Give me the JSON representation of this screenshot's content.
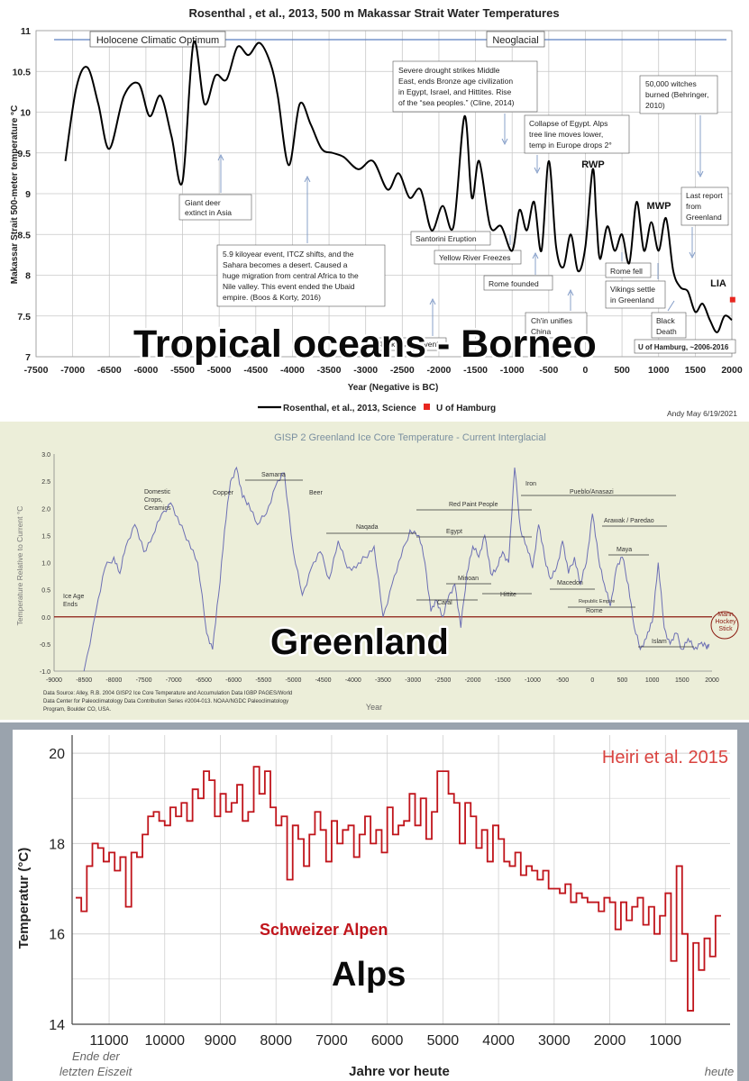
{
  "borneo": {
    "title": "Rosenthal , et al., 2013, 500 m Makassar Strait Water Temperatures",
    "ylabel": "Makassar Strait 500-meter temperature °C",
    "xlabel": "Year (Negative is BC)",
    "xticks": [
      "-7500",
      "-7000",
      "-6500",
      "-6000",
      "-5500",
      "-5000",
      "-4500",
      "-4000",
      "-3500",
      "-3000",
      "-2500",
      "-2000",
      "-1500",
      "-1000",
      "-500",
      "0",
      "500",
      "1000",
      "1500",
      "2000"
    ],
    "yticks": [
      "7",
      "7.5",
      "8",
      "8.5",
      "9",
      "9.5",
      "10",
      "10.5",
      "11"
    ],
    "period_holocene": "Holocene Climatic Optimum",
    "period_neoglacial": "Neoglacial",
    "ann_deer": [
      "Giant deer",
      "extinct in Asia"
    ],
    "ann_59": [
      "5.9 kiloyear event, ITCZ shifts, and the",
      "Sahara becomes a desert.  Caused a",
      "huge migration from central Africa to the",
      "Nile valley.  This event ended the Ubaid",
      "empire. (Boos & Korty, 2016)"
    ],
    "ann_42": "4.2 kiloyear event",
    "ann_drought": [
      "Severe drought strikes Middle",
      "East, ends Bronze age civilization",
      "in Egypt, Israel, and Hittites. Rise",
      "of the “sea peoples.” (Cline, 2014)"
    ],
    "ann_santorini": "Santorini Eruption",
    "ann_yellow": "Yellow River Freezes",
    "ann_rome_founded": "Rome founded",
    "ann_egypt": [
      "Collapse of Egypt. Alps",
      "tree line moves lower,",
      "temp in Europe drops 2°"
    ],
    "ann_chin": [
      "Ch'in unifies",
      "China"
    ],
    "ann_rwp": "RWP",
    "ann_mwp": "MWP",
    "ann_lia": "LIA",
    "ann_rome_fell": "Rome fell",
    "ann_vikings": [
      "Vikings settle",
      "in Greenland"
    ],
    "ann_black": [
      "Black",
      "Death"
    ],
    "ann_witches": [
      "50,000 witches",
      "burned (Behringer,",
      "2010)"
    ],
    "ann_last": [
      "Last report",
      "from",
      "Greenland"
    ],
    "ann_hamburg": "U of Hamburg, ~2006-2016",
    "legend_rosenthal": "Rosenthal, et al., 2013, Science",
    "legend_hamburg": "U of Hamburg",
    "credit": "Andy May   6/19/2021",
    "overlay": "Tropical oceans - Borneo",
    "colors": {
      "series": "#000000",
      "hamburg": "#e8261f",
      "annotation": "#7b96c4"
    }
  },
  "greenland": {
    "title": "GISP 2 Greenland Ice Core Temperature - Current Interglacial",
    "ylabel": "Temperature Relative to Current °C",
    "xlabel": "Year",
    "xticks": [
      "-9000",
      "-8500",
      "-8000",
      "-7500",
      "-7000",
      "-6500",
      "-6000",
      "-5500",
      "-5000",
      "-4500",
      "-4000",
      "-3500",
      "-3000",
      "-2500",
      "-2000",
      "-1500",
      "-1000",
      "-500",
      "0",
      "500",
      "1000",
      "1500",
      "2000"
    ],
    "yticks": [
      "-1.0",
      "-0.5",
      "0.0",
      "0.5",
      "1.0",
      "1.5",
      "2.0",
      "2.5",
      "3.0"
    ],
    "labels": {
      "ice_age": [
        "Ice Age",
        "Ends"
      ],
      "domestic": [
        "Domestic",
        "Crops,",
        "Ceramics"
      ],
      "copper": "Copper",
      "samarra": "Samarra",
      "beer": "Beer",
      "naqada": "Naqada",
      "red_paint": "Red Paint People",
      "egypt": "Egypt",
      "iron": "Iron",
      "pueblo": "Pueblo/Anasazi",
      "arawak": "Arawak / Paredao",
      "minoan": "Minoan",
      "caral": "Caral",
      "hittite": "Hittite",
      "macedon": "Macedon",
      "republic": "Republic   Empire",
      "rome": "Rome",
      "maya": "Maya",
      "islam": "Islam",
      "mann": [
        "Mann",
        "Hockey",
        "Stick"
      ]
    },
    "source": [
      "Data Source: Alley, R.B.  2004 GISP2 Ice Core Temperature and Accumulation Data  IGBP PAGES/World",
      "Data Center for Paleoclimatology Data Contribution Series #2004-013. NOAA/NGDC Paleoclimatology",
      "Program, Boulder CO, USA."
    ],
    "overlay": "Greenland",
    "colors": {
      "series": "#6c6fb4",
      "zero": "#8b1a10"
    }
  },
  "alps": {
    "citation": "Heiri et al. 2015",
    "ylabel": "Temperatur (°C)",
    "xlabel": "Jahre vor heute",
    "xticks": [
      "11000",
      "10000",
      "9000",
      "8000",
      "7000",
      "6000",
      "5000",
      "4000",
      "3000",
      "2000",
      "1000"
    ],
    "yticks": [
      "20",
      "18",
      "16",
      "14"
    ],
    "series_label": "Schweizer Alpen",
    "left_note": [
      "Ende der",
      "letzten Eiszeit"
    ],
    "right_note": "heute",
    "overlay": "Alps",
    "colors": {
      "series": "#c0141b",
      "citation": "#d9433f"
    }
  },
  "chart_data": [
    {
      "type": "line",
      "title": "Rosenthal , et al., 2013, 500 m Makassar Strait Water Temperatures",
      "xlabel": "Year (Negative is BC)",
      "ylabel": "Makassar Strait 500-meter temperature °C",
      "xlim": [
        -7500,
        2000
      ],
      "ylim": [
        7,
        11
      ],
      "grid": true,
      "legend": "bottom",
      "series": [
        {
          "name": "Rosenthal, et al., 2013, Science",
          "x": [
            -7100,
            -6950,
            -6800,
            -6650,
            -6500,
            -6300,
            -6100,
            -5950,
            -5800,
            -5650,
            -5500,
            -5350,
            -5200,
            -5050,
            -4900,
            -4750,
            -4600,
            -4450,
            -4300,
            -4200,
            -4050,
            -3900,
            -3750,
            -3600,
            -3450,
            -3300,
            -3100,
            -2900,
            -2700,
            -2550,
            -2400,
            -2250,
            -2100,
            -1950,
            -1800,
            -1650,
            -1550,
            -1450,
            -1300,
            -1150,
            -1000,
            -900,
            -800,
            -700,
            -600,
            -500,
            -400,
            -300,
            -200,
            -100,
            0,
            100,
            150,
            200,
            300,
            400,
            500,
            600,
            700,
            800,
            900,
            1000,
            1100,
            1200,
            1300,
            1400,
            1500,
            1600,
            1700,
            1800,
            1900,
            2000
          ],
          "values": [
            9.4,
            10.3,
            10.55,
            10.1,
            9.55,
            10.2,
            10.35,
            9.95,
            10.2,
            9.7,
            9.15,
            10.85,
            10.1,
            10.45,
            10.4,
            10.8,
            10.7,
            10.85,
            10.6,
            10.2,
            9.35,
            10.1,
            9.85,
            9.55,
            9.5,
            9.45,
            9.3,
            9.4,
            9.05,
            9.25,
            8.95,
            9.05,
            8.55,
            8.85,
            8.6,
            9.95,
            8.95,
            9.4,
            8.6,
            8.6,
            8.3,
            8.8,
            8.55,
            8.9,
            8.3,
            9.4,
            8.35,
            8.1,
            8.5,
            8.05,
            8.35,
            9.3,
            8.7,
            8.2,
            8.6,
            8.3,
            8.5,
            8.15,
            8.9,
            8.3,
            8.65,
            8.3,
            8.7,
            8.05,
            7.85,
            7.8,
            7.55,
            7.65,
            7.45,
            7.3,
            7.5,
            7.45
          ]
        },
        {
          "name": "U of Hamburg",
          "x": [
            2010
          ],
          "values": [
            7.7
          ]
        }
      ]
    },
    {
      "type": "line",
      "title": "GISP 2 Greenland Ice Core Temperature - Current Interglacial",
      "xlabel": "Year",
      "ylabel": "Temperature Relative to Current °C",
      "xlim": [
        -9000,
        2000
      ],
      "ylim": [
        -1.0,
        3.0
      ],
      "grid": false,
      "series": [
        {
          "x": [
            -8500,
            -8300,
            -8150,
            -8000,
            -7900,
            -7800,
            -7650,
            -7500,
            -7350,
            -7200,
            -7050,
            -6900,
            -6750,
            -6600,
            -6450,
            -6350,
            -6250,
            -6150,
            -6050,
            -5950,
            -5850,
            -5750,
            -5600,
            -5450,
            -5300,
            -5150,
            -5000,
            -4850,
            -4700,
            -4550,
            -4400,
            -4250,
            -4100,
            -3950,
            -3800,
            -3650,
            -3500,
            -3350,
            -3200,
            -3050,
            -2900,
            -2800,
            -2700,
            -2600,
            -2500,
            -2400,
            -2300,
            -2200,
            -2100,
            -2000,
            -1900,
            -1800,
            -1700,
            -1600,
            -1500,
            -1400,
            -1300,
            -1200,
            -1100,
            -1000,
            -900,
            -800,
            -700,
            -600,
            -500,
            -400,
            -300,
            -200,
            -100,
            0,
            100,
            200,
            300,
            400,
            500,
            600,
            700,
            800,
            900,
            1000,
            1100,
            1200,
            1300,
            1400,
            1500,
            1600,
            1700,
            1800,
            1900,
            1950
          ],
          "values": [
            -1.0,
            0.1,
            0.9,
            1.1,
            0.8,
            1.3,
            1.7,
            1.2,
            1.5,
            1.9,
            2.1,
            1.7,
            1.4,
            1.0,
            -0.3,
            -0.6,
            0.4,
            1.6,
            2.5,
            2.75,
            2.2,
            2.1,
            1.7,
            1.9,
            2.4,
            2.65,
            1.2,
            0.4,
            0.9,
            1.2,
            0.7,
            1.4,
            0.9,
            0.9,
            1.1,
            1.3,
            0.0,
            0.6,
            1.1,
            1.6,
            1.5,
            1.0,
            0.1,
            0.3,
            0.0,
            0.4,
            0.6,
            -0.2,
            0.8,
            1.3,
            1.1,
            1.5,
            0.8,
            0.9,
            1.2,
            1.0,
            2.75,
            1.6,
            1.3,
            0.9,
            1.7,
            1.1,
            0.7,
            0.9,
            1.4,
            0.8,
            1.1,
            0.6,
            1.0,
            1.9,
            1.1,
            0.6,
            0.2,
            0.9,
            1.1,
            0.6,
            -0.2,
            -0.6,
            -0.4,
            -0.1,
            1.0,
            -0.2,
            -0.5,
            -0.3,
            -0.6,
            -0.4,
            -0.6,
            -0.5,
            -0.55,
            -0.5
          ]
        }
      ]
    },
    {
      "type": "line",
      "title": "",
      "xlabel": "Jahre vor heute",
      "ylabel": "Temperatur (°C)",
      "xlim": [
        11600,
        0
      ],
      "ylim": [
        14,
        20.4
      ],
      "grid": true,
      "series": [
        {
          "name": "Schweizer Alpen",
          "x": [
            11600,
            11500,
            11400,
            11300,
            11200,
            11100,
            11000,
            10900,
            10800,
            10700,
            10600,
            10500,
            10400,
            10300,
            10200,
            10100,
            10000,
            9900,
            9800,
            9700,
            9600,
            9500,
            9400,
            9300,
            9200,
            9100,
            9000,
            8900,
            8800,
            8700,
            8600,
            8500,
            8400,
            8300,
            8200,
            8100,
            8000,
            7900,
            7800,
            7700,
            7600,
            7500,
            7400,
            7300,
            7200,
            7100,
            7000,
            6900,
            6800,
            6700,
            6600,
            6500,
            6400,
            6300,
            6200,
            6100,
            6000,
            5900,
            5800,
            5700,
            5600,
            5500,
            5400,
            5300,
            5200,
            5100,
            5000,
            4900,
            4800,
            4700,
            4600,
            4500,
            4400,
            4300,
            4200,
            4100,
            4000,
            3900,
            3800,
            3700,
            3600,
            3500,
            3400,
            3300,
            3200,
            3100,
            3000,
            2900,
            2800,
            2700,
            2600,
            2500,
            2400,
            2300,
            2200,
            2100,
            2000,
            1900,
            1800,
            1700,
            1600,
            1500,
            1400,
            1300,
            1200,
            1100,
            1000,
            900,
            800,
            700,
            600,
            500,
            400,
            300,
            200,
            100
          ],
          "values": [
            16.8,
            16.5,
            17.5,
            18.0,
            17.9,
            17.6,
            17.8,
            17.4,
            17.7,
            16.6,
            17.8,
            17.7,
            18.2,
            18.6,
            18.7,
            18.5,
            18.4,
            18.8,
            18.6,
            18.9,
            18.5,
            19.2,
            19.0,
            19.6,
            19.4,
            18.6,
            19.1,
            18.7,
            18.9,
            19.3,
            18.5,
            18.7,
            19.7,
            19.1,
            19.6,
            18.8,
            18.4,
            18.6,
            17.2,
            18.4,
            18.1,
            17.5,
            18.2,
            18.7,
            18.3,
            17.6,
            18.5,
            18.0,
            18.3,
            18.4,
            17.7,
            18.2,
            18.6,
            18.0,
            18.3,
            17.8,
            18.8,
            18.2,
            18.4,
            18.5,
            19.1,
            18.4,
            19.0,
            18.1,
            18.7,
            19.6,
            19.6,
            19.1,
            18.9,
            18.0,
            18.9,
            18.6,
            17.9,
            18.3,
            17.6,
            18.4,
            18.1,
            17.6,
            17.5,
            17.8,
            17.3,
            17.5,
            17.4,
            17.2,
            17.4,
            17.0,
            17.0,
            16.9,
            17.1,
            16.7,
            16.9,
            16.8,
            16.7,
            16.7,
            16.5,
            16.8,
            16.7,
            16.1,
            16.7,
            16.3,
            16.6,
            16.8,
            16.2,
            16.6,
            16.0,
            16.4,
            16.9,
            15.4,
            17.5,
            16.0,
            14.3,
            15.8,
            15.2,
            15.9,
            15.5,
            16.4
          ]
        }
      ]
    }
  ]
}
